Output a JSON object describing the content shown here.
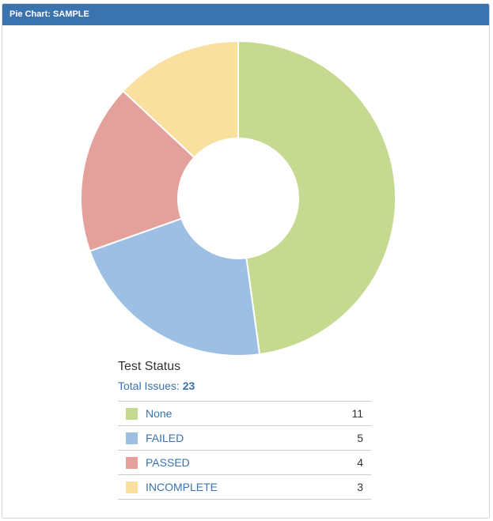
{
  "header": {
    "title": "Pie Chart: SAMPLE"
  },
  "legend": {
    "title": "Test Status",
    "total_label": "Total Issues:",
    "total_value": "23"
  },
  "chart_data": {
    "type": "pie",
    "donut": true,
    "categories": [
      "None",
      "FAILED",
      "PASSED",
      "INCOMPLETE"
    ],
    "values": [
      11,
      5,
      4,
      3
    ],
    "colors": [
      "#c6d990",
      "#9dbfe3",
      "#e4a19b",
      "#f9e09f"
    ]
  }
}
